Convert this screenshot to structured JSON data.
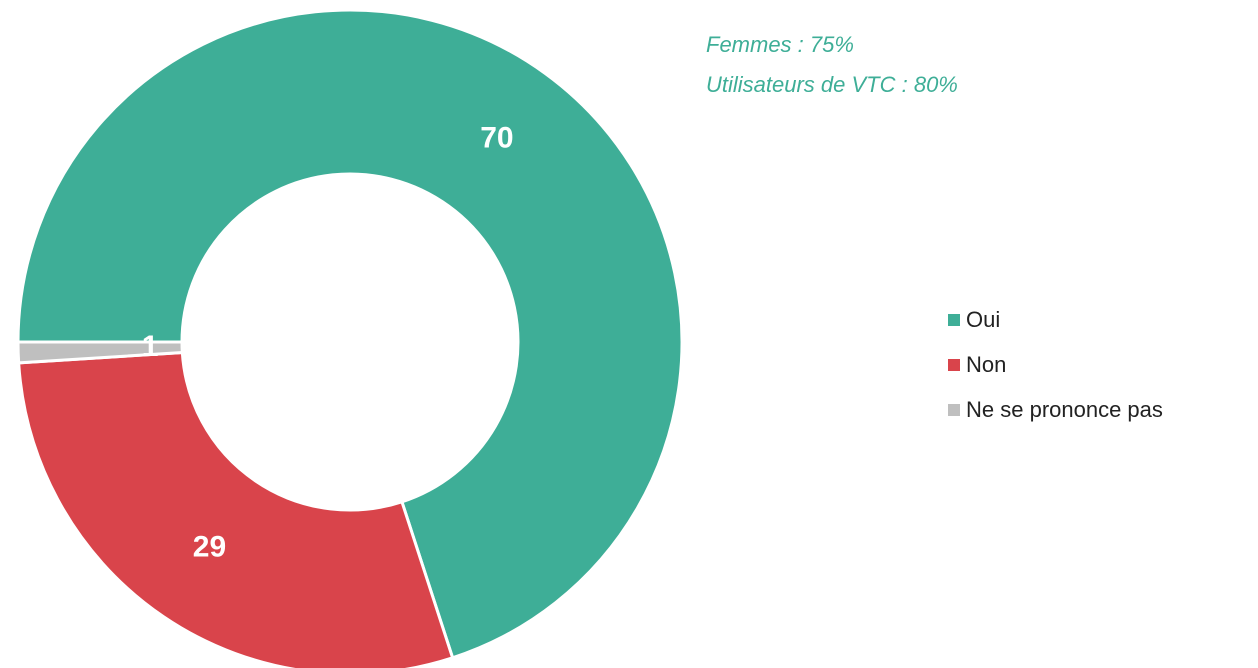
{
  "chart_data": {
    "type": "donut",
    "annotations": [
      "Femmes : 75%",
      "Utilisateurs de VTC : 80%"
    ],
    "categories": [
      "Oui",
      "Non",
      "Ne se prononce pas"
    ],
    "values": [
      70,
      29,
      1
    ],
    "colors": [
      "#3eae97",
      "#d9444b",
      "#bfbfbf"
    ],
    "legend": "right"
  }
}
